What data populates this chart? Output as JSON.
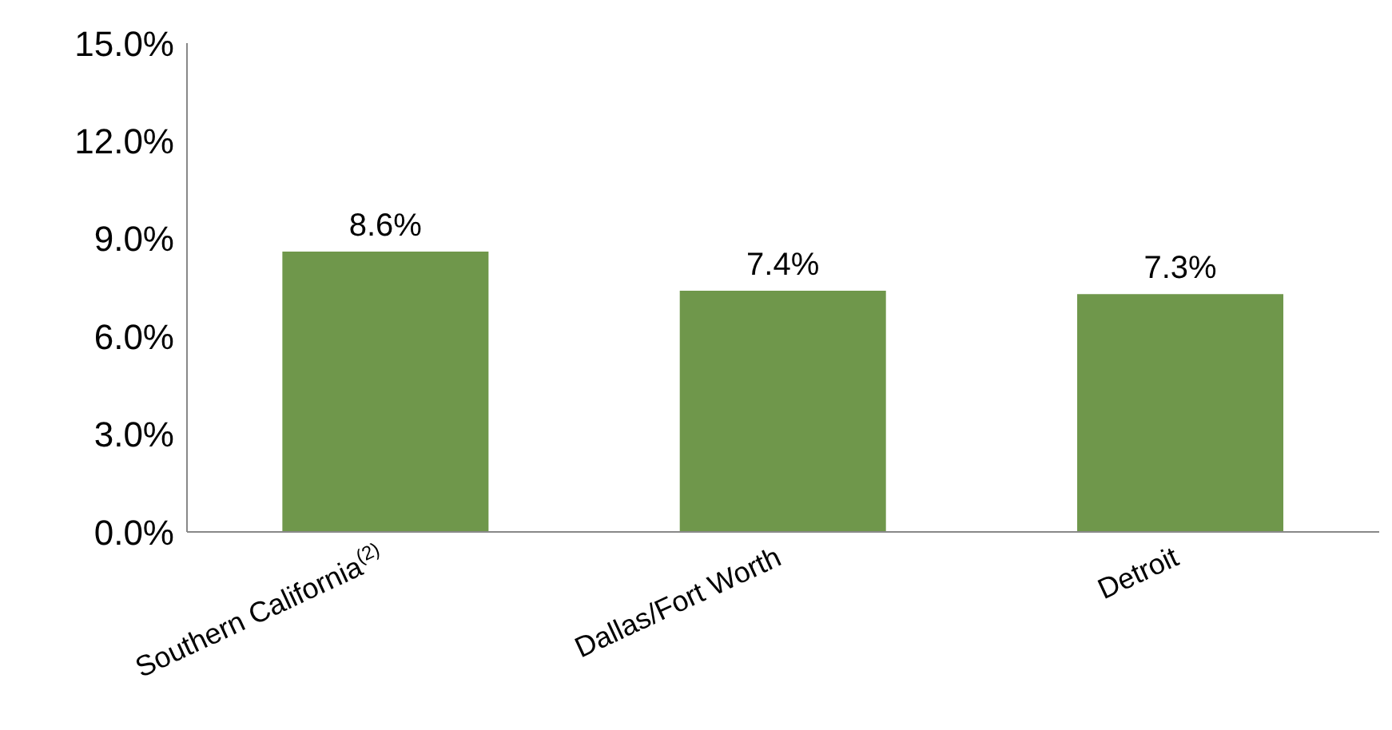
{
  "chart_data": {
    "type": "bar",
    "categories": [
      "Southern California$^{(2)}$",
      "Dallas/Fort Worth",
      "Detroit"
    ],
    "values": [
      8.6,
      7.4,
      7.3
    ],
    "value_labels": [
      "8.6%",
      "7.4%",
      "7.3%"
    ],
    "color": "#6f974b",
    "ylim": [
      0,
      15
    ],
    "yticks": [
      {
        "value": 0,
        "label": "0.0%"
      },
      {
        "value": 3,
        "label": "3.0%"
      },
      {
        "value": 6,
        "label": "6.0%"
      },
      {
        "value": 9,
        "label": "9.0%"
      },
      {
        "value": 12,
        "label": "12.0%"
      },
      {
        "value": 15,
        "label": "15.0%"
      }
    ]
  }
}
